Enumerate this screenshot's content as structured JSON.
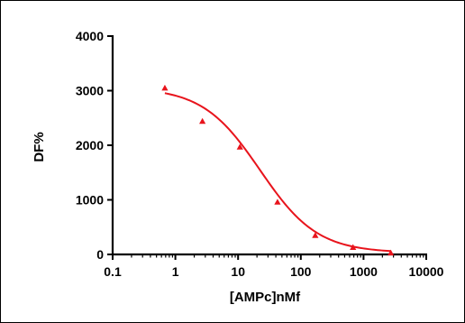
{
  "chart_data": {
    "type": "scatter",
    "title": "",
    "xlabel": "[AMPc]nMf",
    "ylabel": "DF%",
    "xscale": "log",
    "xlim": [
      0.1,
      10000
    ],
    "ylim": [
      0,
      4000
    ],
    "grid": false,
    "legend": "none",
    "x_ticks": [
      0.1,
      1,
      10,
      100,
      1000,
      10000
    ],
    "x_tick_labels": [
      "0.1",
      "1",
      "10",
      "100",
      "1000",
      "10000"
    ],
    "y_ticks": [
      0,
      1000,
      2000,
      3000,
      4000
    ],
    "y_tick_labels": [
      "0",
      "1000",
      "2000",
      "3000",
      "4000"
    ],
    "series": [
      {
        "marker": "triangle",
        "color": "#e8141c",
        "x": [
          0.68,
          2.7,
          10.7,
          42.5,
          170,
          680,
          2720
        ],
        "y": [
          3050,
          2440,
          1970,
          960,
          350,
          130,
          30
        ]
      }
    ],
    "fit_curve": {
      "type": "sigmoidal dose-response (log)",
      "color": "#e8141c",
      "top": 3060,
      "bottom": 30,
      "log_ec50": 1.35,
      "hill": 0.95,
      "x_range": [
        0.68,
        2720
      ]
    }
  }
}
